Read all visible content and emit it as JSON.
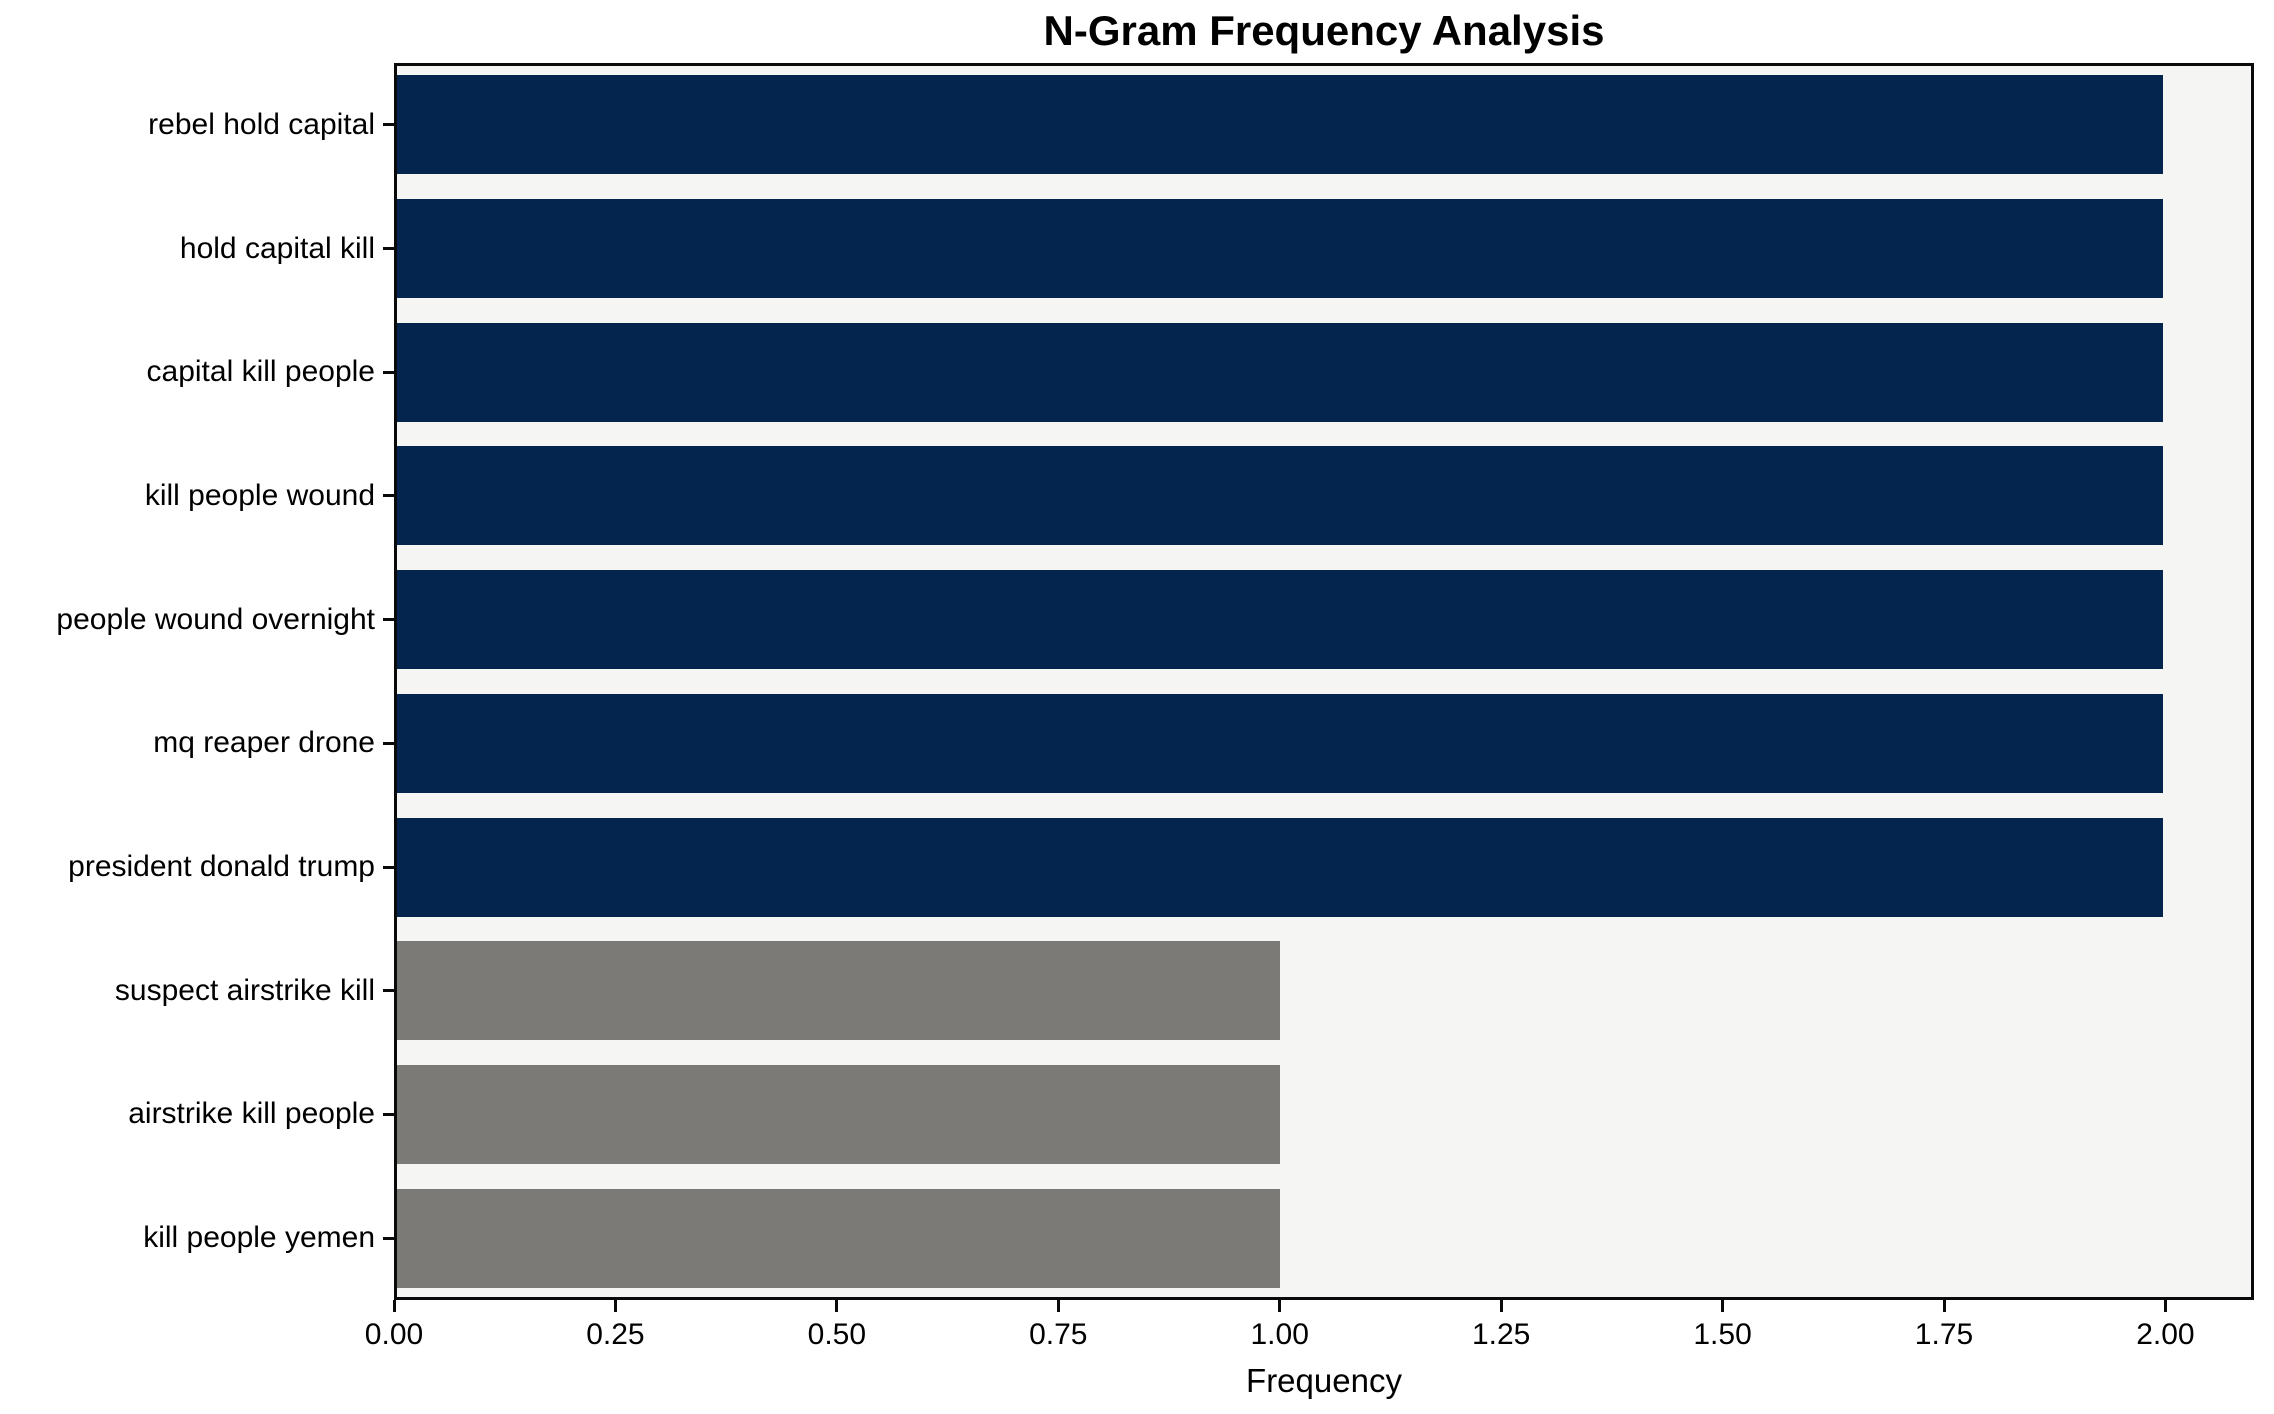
{
  "chart_data": {
    "type": "bar",
    "orientation": "horizontal",
    "title": "N-Gram Frequency Analysis",
    "xlabel": "Frequency",
    "ylabel": "",
    "categories": [
      "rebel hold capital",
      "hold capital kill",
      "capital kill people",
      "kill people wound",
      "people wound overnight",
      "mq reaper drone",
      "president donald trump",
      "suspect airstrike kill",
      "airstrike kill people",
      "kill people yemen"
    ],
    "values": [
      2,
      2,
      2,
      2,
      2,
      2,
      2,
      1,
      1,
      1
    ],
    "bar_colors": [
      "#03254e",
      "#03254e",
      "#03254e",
      "#03254e",
      "#03254e",
      "#03254e",
      "#03254e",
      "#7b7a77",
      "#7b7a77",
      "#7b7a77"
    ],
    "xlim": [
      0,
      2.1
    ],
    "xticks": [
      0,
      0.25,
      0.5,
      0.75,
      1,
      1.25,
      1.5,
      1.75,
      2
    ],
    "xtick_labels": [
      "0.00",
      "0.25",
      "0.50",
      "0.75",
      "1.00",
      "1.25",
      "1.50",
      "1.75",
      "2.00"
    ],
    "grid": false,
    "legend": null,
    "colors": {
      "bar_high": "#03254e",
      "bar_low": "#7b7a77",
      "plot_background": "#f5f5f4",
      "figure_background": "#ffffff",
      "spine": "#0a0a0a"
    }
  }
}
